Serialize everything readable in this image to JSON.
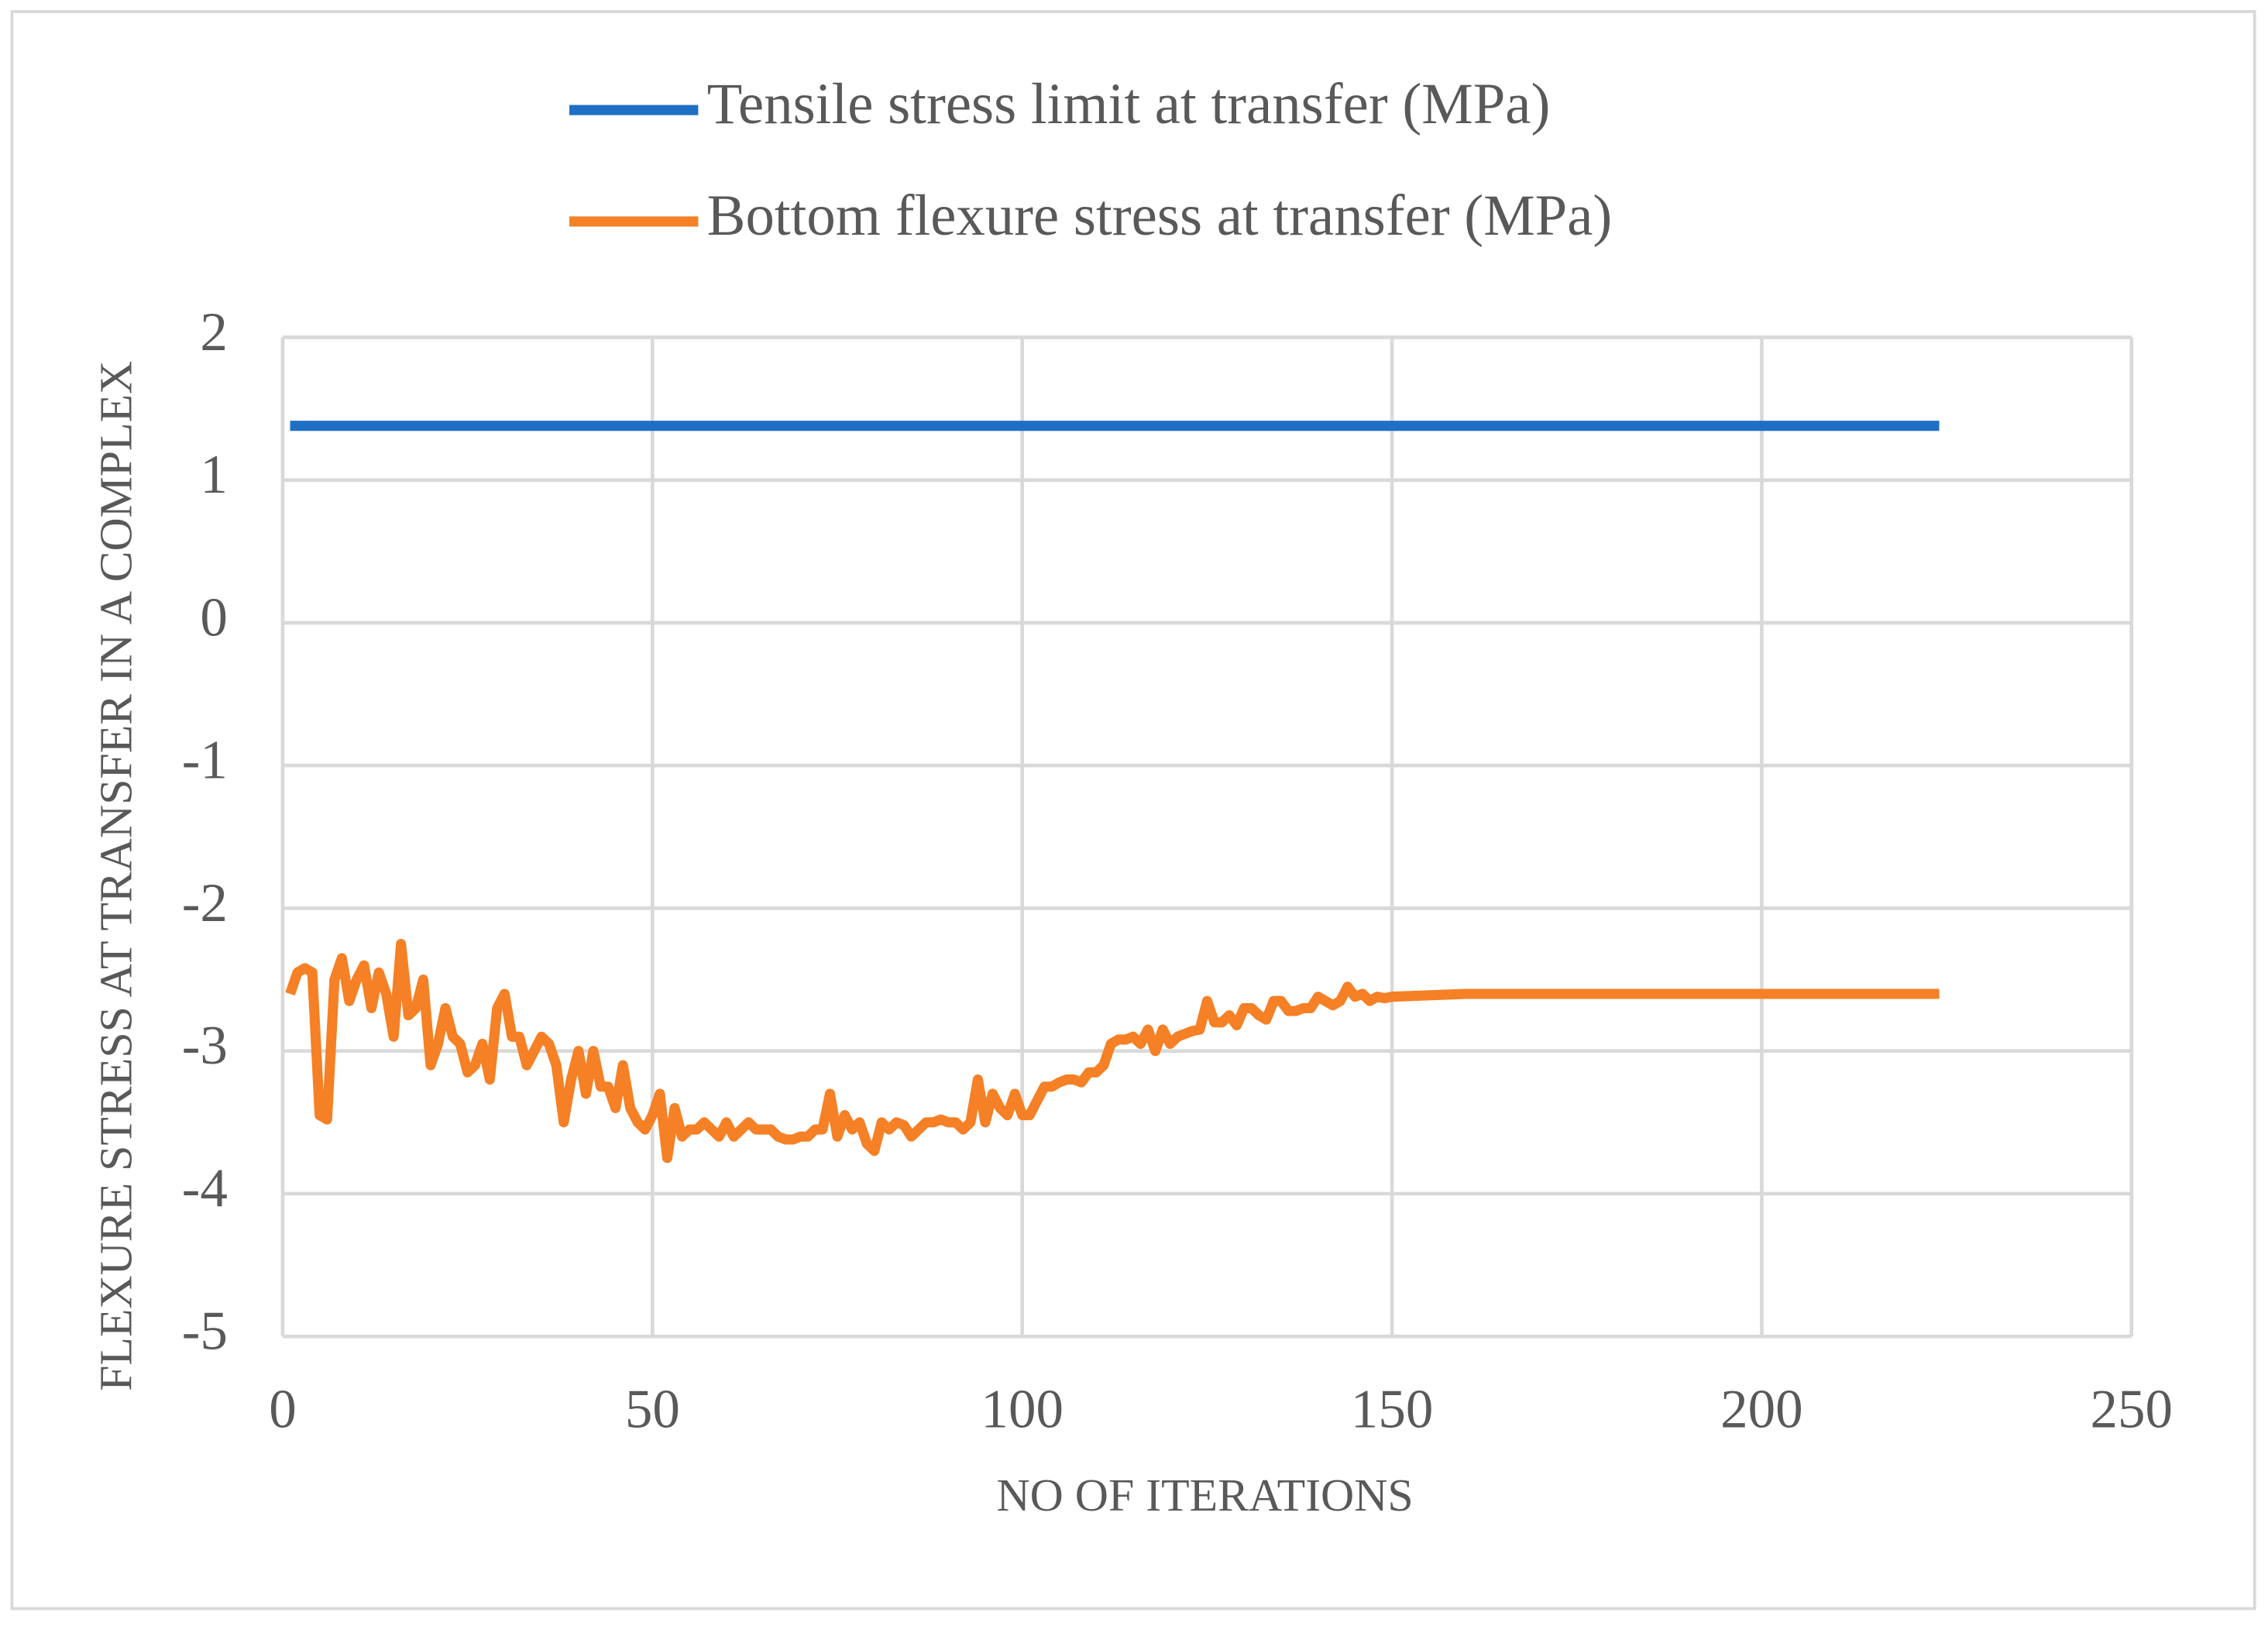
{
  "chart_data": {
    "type": "line",
    "x_label": "NO OF ITERATIONS",
    "y_label": "FLEXURE STRESS AT TRANSFER IN A COMPLEX",
    "x": [
      1,
      2,
      3,
      4,
      5,
      6,
      7,
      8,
      9,
      10,
      11,
      12,
      13,
      14,
      15,
      16,
      17,
      18,
      19,
      20,
      21,
      22,
      23,
      24,
      25,
      26,
      27,
      28,
      29,
      30,
      31,
      32,
      33,
      34,
      35,
      36,
      37,
      38,
      39,
      40,
      41,
      42,
      43,
      44,
      45,
      46,
      47,
      48,
      49,
      50,
      51,
      52,
      53,
      54,
      55,
      56,
      57,
      58,
      59,
      60,
      61,
      62,
      63,
      64,
      65,
      66,
      67,
      68,
      69,
      70,
      71,
      72,
      73,
      74,
      75,
      76,
      77,
      78,
      79,
      80,
      81,
      82,
      83,
      84,
      85,
      86,
      87,
      88,
      89,
      90,
      91,
      92,
      93,
      94,
      95,
      96,
      97,
      98,
      99,
      100,
      101,
      102,
      103,
      104,
      105,
      106,
      107,
      108,
      109,
      110,
      111,
      112,
      113,
      114,
      115,
      116,
      117,
      118,
      119,
      120,
      121,
      122,
      123,
      124,
      125,
      126,
      127,
      128,
      129,
      130,
      131,
      132,
      133,
      134,
      135,
      136,
      137,
      138,
      139,
      140,
      141,
      142,
      143,
      144,
      145,
      146,
      147,
      148,
      149,
      150,
      160,
      180,
      200,
      224
    ],
    "series": [
      {
        "name": "Tensile stress limit at transfer (MPa)",
        "color": "#1f6fc5",
        "values": [
          1.38,
          1.38,
          1.38,
          1.38,
          1.38,
          1.38,
          1.38,
          1.38,
          1.38,
          1.38,
          1.38,
          1.38,
          1.38,
          1.38,
          1.38,
          1.38,
          1.38,
          1.38,
          1.38,
          1.38,
          1.38,
          1.38,
          1.38,
          1.38,
          1.38,
          1.38,
          1.38,
          1.38,
          1.38,
          1.38,
          1.38,
          1.38,
          1.38,
          1.38,
          1.38,
          1.38,
          1.38,
          1.38,
          1.38,
          1.38,
          1.38,
          1.38,
          1.38,
          1.38,
          1.38,
          1.38,
          1.38,
          1.38,
          1.38,
          1.38,
          1.38,
          1.38,
          1.38,
          1.38,
          1.38,
          1.38,
          1.38,
          1.38,
          1.38,
          1.38,
          1.38,
          1.38,
          1.38,
          1.38,
          1.38,
          1.38,
          1.38,
          1.38,
          1.38,
          1.38,
          1.38,
          1.38,
          1.38,
          1.38,
          1.38,
          1.38,
          1.38,
          1.38,
          1.38,
          1.38,
          1.38,
          1.38,
          1.38,
          1.38,
          1.38,
          1.38,
          1.38,
          1.38,
          1.38,
          1.38,
          1.38,
          1.38,
          1.38,
          1.38,
          1.38,
          1.38,
          1.38,
          1.38,
          1.38,
          1.38,
          1.38,
          1.38,
          1.38,
          1.38,
          1.38,
          1.38,
          1.38,
          1.38,
          1.38,
          1.38,
          1.38,
          1.38,
          1.38,
          1.38,
          1.38,
          1.38,
          1.38,
          1.38,
          1.38,
          1.38,
          1.38,
          1.38,
          1.38,
          1.38,
          1.38,
          1.38,
          1.38,
          1.38,
          1.38,
          1.38,
          1.38,
          1.38,
          1.38,
          1.38,
          1.38,
          1.38,
          1.38,
          1.38,
          1.38,
          1.38,
          1.38,
          1.38,
          1.38,
          1.38,
          1.38,
          1.38,
          1.38,
          1.38,
          1.38,
          1.38,
          1.38,
          1.38,
          1.38,
          1.38
        ]
      },
      {
        "name": "Bottom flexure stress at transfer (MPa)",
        "color": "#f58025",
        "values": [
          -2.6,
          -2.45,
          -2.42,
          -2.45,
          -3.45,
          -3.48,
          -2.5,
          -2.35,
          -2.65,
          -2.5,
          -2.4,
          -2.7,
          -2.45,
          -2.6,
          -2.9,
          -2.25,
          -2.75,
          -2.7,
          -2.5,
          -3.1,
          -2.95,
          -2.7,
          -2.9,
          -2.95,
          -3.15,
          -3.1,
          -2.95,
          -3.2,
          -2.7,
          -2.6,
          -2.9,
          -2.9,
          -3.1,
          -3.0,
          -2.9,
          -2.95,
          -3.1,
          -3.5,
          -3.2,
          -3.0,
          -3.3,
          -3.0,
          -3.25,
          -3.25,
          -3.4,
          -3.1,
          -3.4,
          -3.5,
          -3.55,
          -3.45,
          -3.3,
          -3.75,
          -3.4,
          -3.6,
          -3.55,
          -3.55,
          -3.5,
          -3.55,
          -3.6,
          -3.5,
          -3.6,
          -3.55,
          -3.5,
          -3.55,
          -3.55,
          -3.55,
          -3.6,
          -3.62,
          -3.62,
          -3.6,
          -3.6,
          -3.55,
          -3.55,
          -3.3,
          -3.6,
          -3.45,
          -3.55,
          -3.5,
          -3.65,
          -3.7,
          -3.5,
          -3.55,
          -3.5,
          -3.52,
          -3.6,
          -3.55,
          -3.5,
          -3.5,
          -3.48,
          -3.5,
          -3.5,
          -3.55,
          -3.5,
          -3.2,
          -3.5,
          -3.3,
          -3.4,
          -3.45,
          -3.3,
          -3.45,
          -3.45,
          -3.35,
          -3.25,
          -3.25,
          -3.22,
          -3.2,
          -3.2,
          -3.22,
          -3.15,
          -3.15,
          -3.1,
          -2.95,
          -2.92,
          -2.92,
          -2.9,
          -2.95,
          -2.85,
          -3.0,
          -2.85,
          -2.95,
          -2.9,
          -2.88,
          -2.86,
          -2.85,
          -2.65,
          -2.8,
          -2.8,
          -2.75,
          -2.82,
          -2.7,
          -2.7,
          -2.75,
          -2.78,
          -2.65,
          -2.65,
          -2.72,
          -2.72,
          -2.7,
          -2.7,
          -2.62,
          -2.65,
          -2.68,
          -2.65,
          -2.55,
          -2.62,
          -2.6,
          -2.65,
          -2.62,
          -2.63,
          -2.62,
          -2.6,
          -2.6,
          -2.6,
          -2.6
        ]
      }
    ],
    "xlim": [
      0,
      250
    ],
    "xticks": [
      0,
      50,
      100,
      150,
      200,
      250
    ],
    "ylim": [
      -5,
      2
    ],
    "yticks": [
      -5,
      -4,
      -3,
      -2,
      -1,
      0,
      1,
      2
    ],
    "grid": true,
    "legend": "top"
  }
}
